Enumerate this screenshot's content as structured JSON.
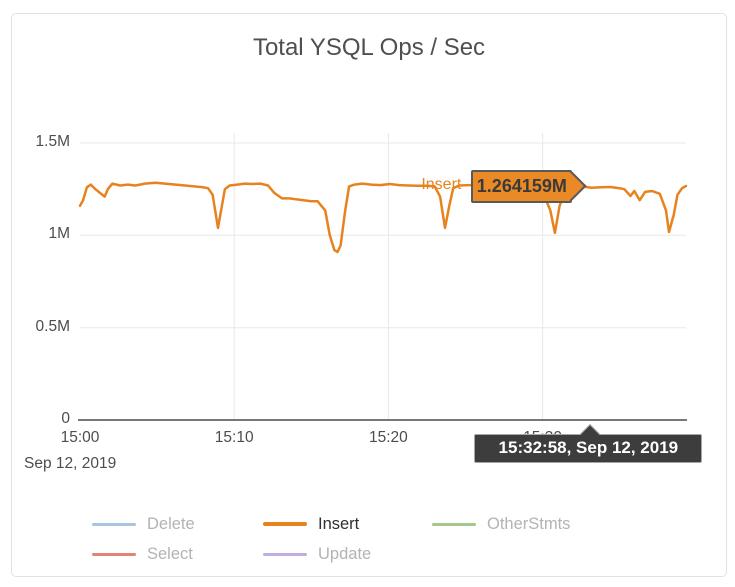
{
  "chart_data": {
    "type": "line",
    "title": "Total YSQL Ops / Sec",
    "x_axis": {
      "tick_labels": [
        "15:00",
        "15:10",
        "15:20",
        "15:30"
      ],
      "tick_minutes": [
        0,
        10,
        20,
        30
      ],
      "range_minutes": [
        0,
        39.3
      ],
      "date_label": "Sep 12, 2019",
      "note": "15:30 tick label is hidden behind the time tooltip"
    },
    "y_axis": {
      "tick_labels": [
        "0",
        "0.5M",
        "1M",
        "1.5M"
      ],
      "tick_values": [
        0,
        0.5,
        1,
        1.5
      ],
      "range": [
        0,
        1.5
      ],
      "unit": "M ops/sec",
      "grid": true
    },
    "legend": [
      {
        "label": "Delete",
        "color": "#a8c4de",
        "active": false
      },
      {
        "label": "Insert",
        "color": "#e8821e",
        "active": true
      },
      {
        "label": "OtherStmts",
        "color": "#a3c98a",
        "active": false
      },
      {
        "label": "Select",
        "color": "#e2847a",
        "active": false
      },
      {
        "label": "Update",
        "color": "#c0aede",
        "active": false
      }
    ],
    "series": [
      {
        "name": "Insert",
        "color": "#e8821e",
        "points_min_mops": [
          [
            0.0,
            1.16
          ],
          [
            0.2,
            1.19
          ],
          [
            0.45,
            1.26
          ],
          [
            0.7,
            1.275
          ],
          [
            1.0,
            1.25
          ],
          [
            1.3,
            1.23
          ],
          [
            1.6,
            1.21
          ],
          [
            1.8,
            1.25
          ],
          [
            2.1,
            1.28
          ],
          [
            2.6,
            1.27
          ],
          [
            3.1,
            1.275
          ],
          [
            3.6,
            1.27
          ],
          [
            4.2,
            1.28
          ],
          [
            4.9,
            1.285
          ],
          [
            5.5,
            1.28
          ],
          [
            6.2,
            1.275
          ],
          [
            6.8,
            1.27
          ],
          [
            7.4,
            1.265
          ],
          [
            8.0,
            1.26
          ],
          [
            8.3,
            1.255
          ],
          [
            8.6,
            1.22
          ],
          [
            8.95,
            1.04
          ],
          [
            9.2,
            1.16
          ],
          [
            9.4,
            1.25
          ],
          [
            9.7,
            1.27
          ],
          [
            10.2,
            1.275
          ],
          [
            10.7,
            1.28
          ],
          [
            11.2,
            1.278
          ],
          [
            11.7,
            1.28
          ],
          [
            12.2,
            1.27
          ],
          [
            12.6,
            1.23
          ],
          [
            13.1,
            1.2
          ],
          [
            13.6,
            1.2
          ],
          [
            14.0,
            1.195
          ],
          [
            14.5,
            1.19
          ],
          [
            15.0,
            1.185
          ],
          [
            15.4,
            1.185
          ],
          [
            15.9,
            1.135
          ],
          [
            16.2,
            1.0
          ],
          [
            16.5,
            0.92
          ],
          [
            16.7,
            0.91
          ],
          [
            16.9,
            0.945
          ],
          [
            17.2,
            1.135
          ],
          [
            17.45,
            1.265
          ],
          [
            17.8,
            1.275
          ],
          [
            18.3,
            1.28
          ],
          [
            18.9,
            1.275
          ],
          [
            19.5,
            1.272
          ],
          [
            20.1,
            1.278
          ],
          [
            20.7,
            1.272
          ],
          [
            21.3,
            1.27
          ],
          [
            21.9,
            1.268
          ],
          [
            22.5,
            1.268
          ],
          [
            23.0,
            1.265
          ],
          [
            23.35,
            1.21
          ],
          [
            23.67,
            1.04
          ],
          [
            23.95,
            1.16
          ],
          [
            24.2,
            1.255
          ],
          [
            24.6,
            1.27
          ],
          [
            25.2,
            1.272
          ],
          [
            25.9,
            1.272
          ],
          [
            26.6,
            1.27
          ],
          [
            27.3,
            1.27
          ],
          [
            28.0,
            1.268
          ],
          [
            28.7,
            1.266
          ],
          [
            29.4,
            1.26
          ],
          [
            29.9,
            1.255
          ],
          [
            30.5,
            1.135
          ],
          [
            30.8,
            1.013
          ],
          [
            31.1,
            1.16
          ],
          [
            31.5,
            1.245
          ],
          [
            32.0,
            1.255
          ],
          [
            32.6,
            1.264
          ],
          [
            33.2,
            1.258
          ],
          [
            33.8,
            1.26
          ],
          [
            34.4,
            1.262
          ],
          [
            35.0,
            1.255
          ],
          [
            35.3,
            1.25
          ],
          [
            35.7,
            1.213
          ],
          [
            35.95,
            1.24
          ],
          [
            36.3,
            1.19
          ],
          [
            36.65,
            1.235
          ],
          [
            37.1,
            1.24
          ],
          [
            37.6,
            1.225
          ],
          [
            38.0,
            1.135
          ],
          [
            38.2,
            1.018
          ],
          [
            38.5,
            1.11
          ],
          [
            38.75,
            1.22
          ],
          [
            39.05,
            1.255
          ],
          [
            39.3,
            1.267
          ]
        ]
      }
    ],
    "hover": {
      "series": "Insert",
      "value_label": "1.264159M",
      "value_mops": 1.264159,
      "time_label": "15:32:58, Sep 12, 2019",
      "time_minutes": 32.967
    },
    "colors": {
      "grid": "#e8e8e8",
      "axis": "#4a4a4a",
      "axis_text": "#4d4d4d",
      "title_text": "#4f4f4f",
      "value_tip_bg": "#ea8a26",
      "value_tip_border": "#58595b",
      "time_tip_bg": "#3d3d3d",
      "time_tip_text": "#ffffff"
    }
  }
}
